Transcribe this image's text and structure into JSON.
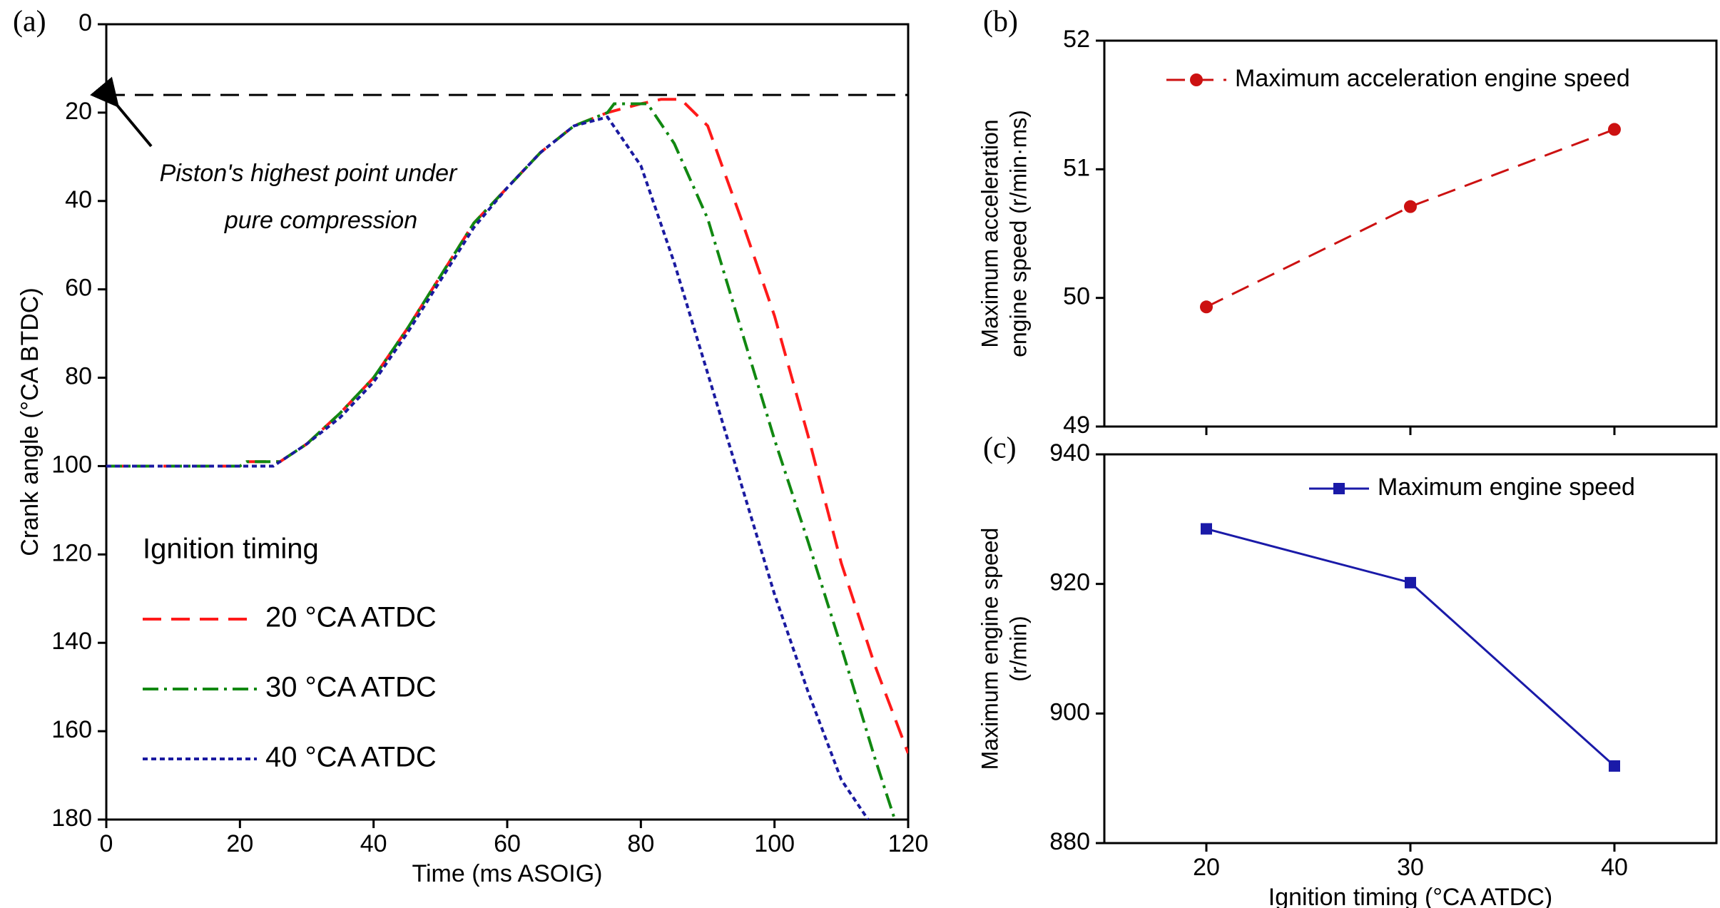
{
  "chart_data": [
    {
      "type": "line",
      "panel_label": "(a)",
      "x_label": "Time (ms ASOIG)",
      "y_label": [
        "Crank angle (°CA BTDC)"
      ],
      "xlim": [
        0,
        120
      ],
      "xticks": [
        0,
        20,
        40,
        60,
        80,
        100,
        120
      ],
      "ylim": [
        0,
        180
      ],
      "y_inverted": true,
      "yticks": [
        0,
        20,
        40,
        60,
        80,
        100,
        120,
        140,
        160,
        180
      ],
      "reference_line": {
        "value": 16,
        "style": "dashed",
        "color": "#000000"
      },
      "annotation": [
        "Piston's highest point under",
        "pure compression"
      ],
      "legend_title": "Ignition timing",
      "legend": "lower left",
      "series": [
        {
          "name": "20 °CA ATDC",
          "color": "#ff1a1a",
          "dash": "dashed",
          "x": [
            0,
            20,
            21,
            26,
            30,
            35,
            40,
            45,
            50,
            55,
            60,
            65,
            70,
            75,
            80,
            83,
            86,
            90,
            95,
            100,
            105,
            110,
            115,
            120
          ],
          "values": [
            100,
            100,
            99,
            99,
            95,
            88,
            80,
            69,
            57,
            45,
            37,
            29,
            23,
            20,
            18,
            17,
            17,
            23,
            44,
            66,
            93,
            122,
            145,
            165
          ]
        },
        {
          "name": "30 °CA ATDC",
          "color": "#118811",
          "dash": "dashdot",
          "x": [
            0,
            20,
            21,
            26,
            30,
            35,
            40,
            45,
            50,
            55,
            60,
            65,
            70,
            75,
            76,
            81,
            85,
            90,
            95,
            100,
            105,
            110,
            115,
            118
          ],
          "values": [
            100,
            100,
            99,
            99,
            95,
            88,
            80,
            69,
            57,
            45,
            37,
            29,
            23,
            20,
            18,
            18,
            27,
            44,
            69,
            94,
            117,
            141,
            166,
            180
          ]
        },
        {
          "name": "40 °CA ATDC",
          "color": "#1a1aa0",
          "dash": "dotted",
          "x": [
            0,
            25,
            26,
            30,
            35,
            40,
            45,
            50,
            55,
            60,
            65,
            70,
            75,
            80,
            85,
            90,
            95,
            100,
            105,
            110,
            114
          ],
          "values": [
            100,
            100,
            99,
            95,
            89,
            81,
            70,
            58,
            46,
            37,
            29,
            23,
            21,
            32,
            54,
            79,
            104,
            129,
            151,
            171,
            180
          ]
        }
      ]
    },
    {
      "type": "line",
      "panel_label": "(b)",
      "y_label": [
        "Maximum acceleration",
        "engine speed (r/min·ms)"
      ],
      "xlim": [
        15,
        45
      ],
      "xticks": [
        20,
        30,
        40
      ],
      "show_xtick_labels": false,
      "ylim": [
        49,
        52
      ],
      "yticks": [
        49,
        50,
        51,
        52
      ],
      "legend": "upper right",
      "series": [
        {
          "name": "Maximum acceleration engine speed",
          "color": "#cc1111",
          "dash": "dashed",
          "marker": "circle",
          "x": [
            20,
            30,
            40
          ],
          "values": [
            49.93,
            50.71,
            51.31
          ]
        }
      ]
    },
    {
      "type": "line",
      "panel_label": "(c)",
      "x_label": "Ignition timing (°CA ATDC)",
      "y_label": [
        "Maximum engine speed",
        "(r/min)"
      ],
      "xlim": [
        15,
        45
      ],
      "xticks": [
        20,
        30,
        40
      ],
      "show_xtick_labels": true,
      "ylim": [
        880,
        940
      ],
      "yticks": [
        880,
        900,
        920,
        940
      ],
      "legend": "upper right",
      "series": [
        {
          "name": "Maximum engine speed",
          "color": "#1a1aa8",
          "dash": "solid",
          "marker": "square",
          "x": [
            20,
            30,
            40
          ],
          "values": [
            928.5,
            920.2,
            891.9
          ]
        }
      ]
    }
  ]
}
